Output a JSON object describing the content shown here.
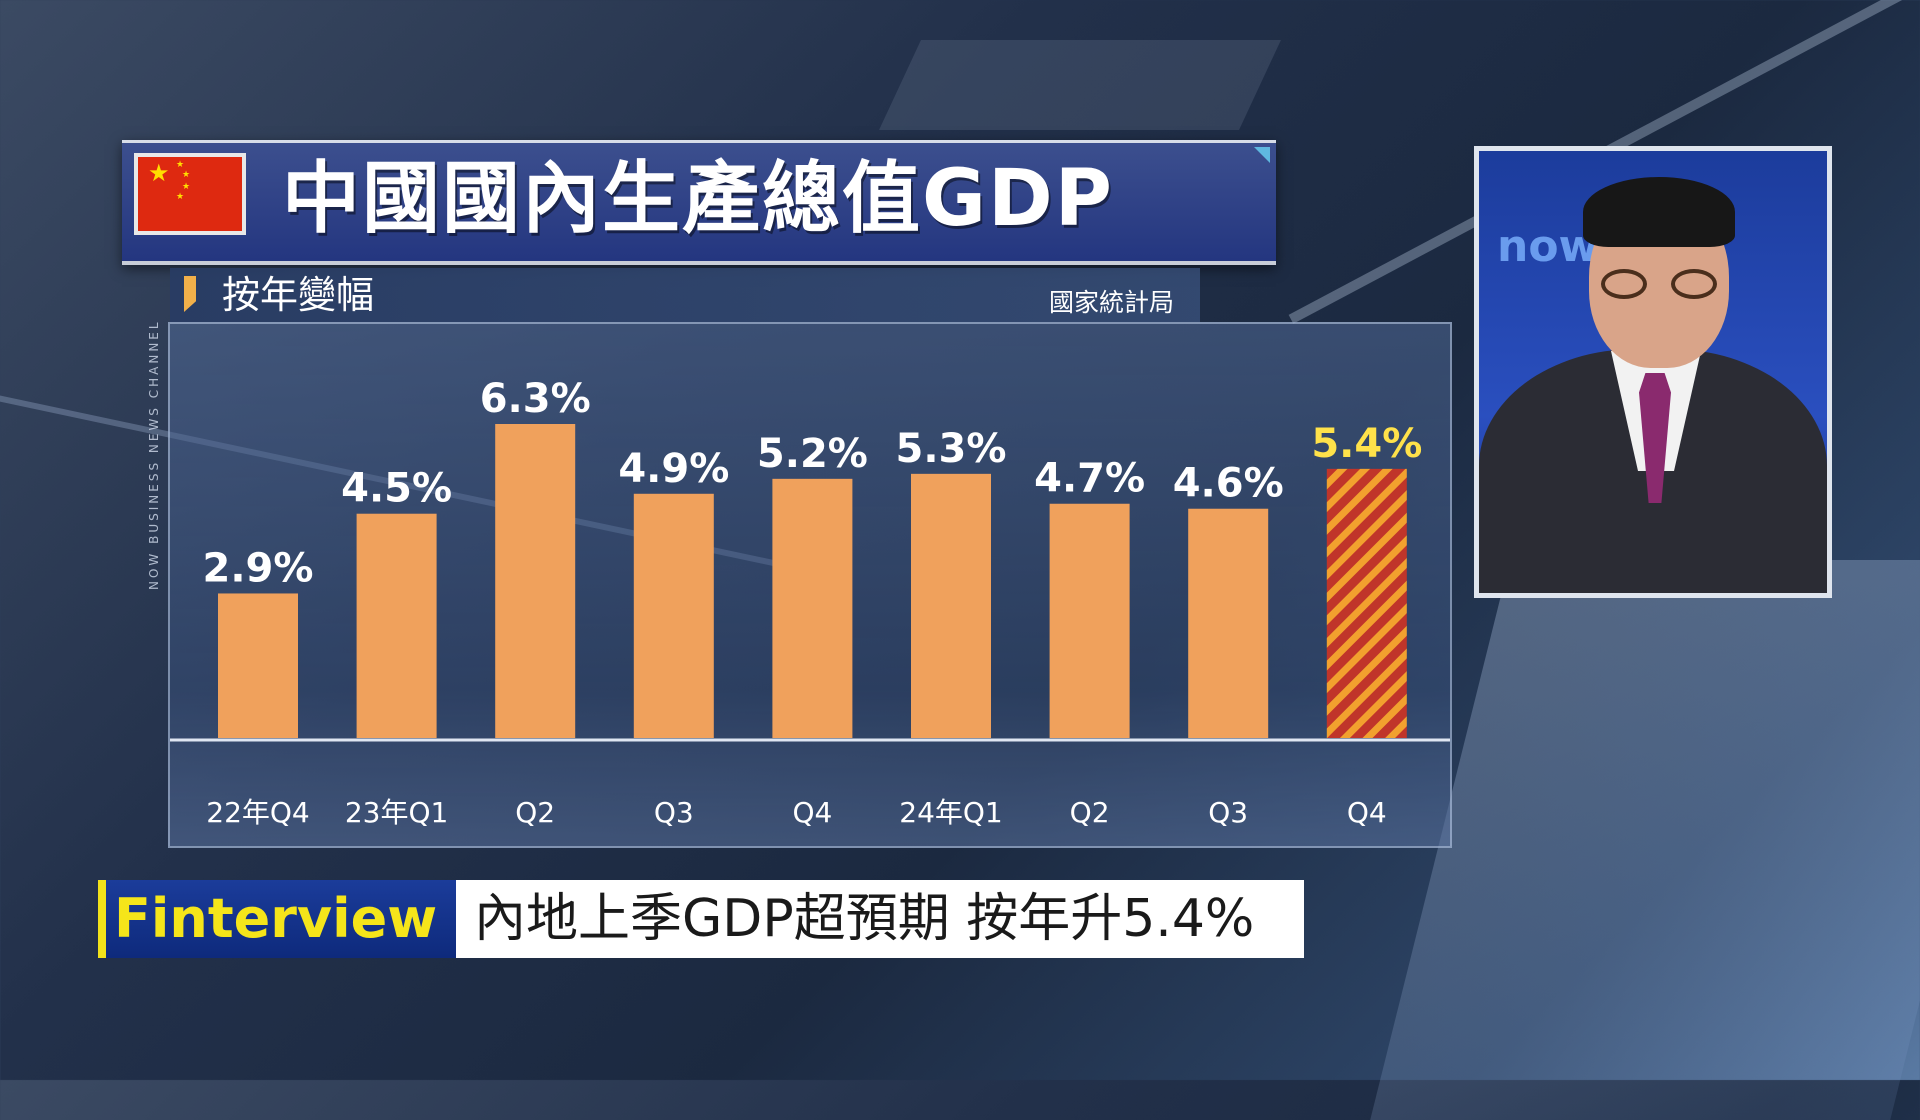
{
  "title": "中國國內生產總值GDP",
  "subtitle": "按年變幅",
  "source": "國家統計局",
  "channel": "NOW BUSINESS NEWS CHANNEL",
  "inset_logo": "now",
  "lower_third": {
    "brand": "Finterview",
    "headline": "內地上季GDP超預期 按年升5.4%"
  },
  "colors": {
    "bar": "#f0a15c",
    "highlight_bar": "#c0352a",
    "highlight_stripe": "#f2a12e",
    "highlight_label": "#ffe24a",
    "title_bg": "#2e4188",
    "brand_yellow": "#f5e51a"
  },
  "chart_data": {
    "type": "bar",
    "title": "中國國內生產總值GDP",
    "subtitle": "按年變幅",
    "categories": [
      "22年Q4",
      "23年Q1",
      "Q2",
      "Q3",
      "Q4",
      "24年Q1",
      "Q2",
      "Q3",
      "Q4"
    ],
    "values": [
      2.9,
      4.5,
      6.3,
      4.9,
      5.2,
      5.3,
      4.7,
      4.6,
      5.4
    ],
    "labels": [
      "2.9%",
      "4.5%",
      "6.3%",
      "4.9%",
      "5.2%",
      "5.3%",
      "4.7%",
      "4.6%",
      "5.4%"
    ],
    "highlight_index": 8,
    "ylim": [
      0,
      6.3
    ],
    "grid": false,
    "legend": "none"
  }
}
